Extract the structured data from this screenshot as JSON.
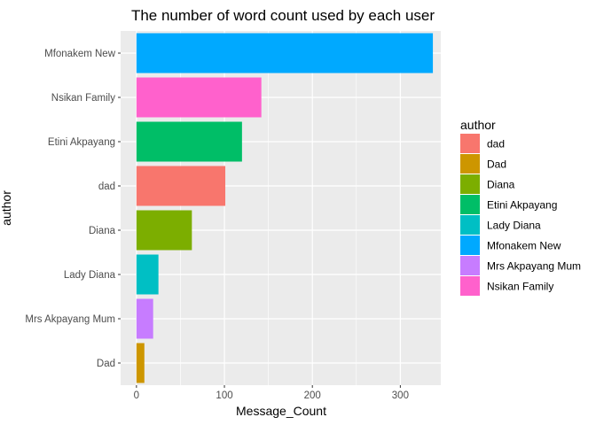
{
  "chart_data": {
    "type": "bar",
    "orientation": "horizontal",
    "title": "The number of word count used by each user",
    "xlabel": "Message_Count",
    "ylabel": "author",
    "xlim": [
      -18,
      346
    ],
    "xticks": [
      0,
      100,
      200,
      300
    ],
    "xtick_labels": [
      "0",
      "100",
      "200",
      "300"
    ],
    "grid": true,
    "categories": [
      "Mfonakem New",
      "Nsikan Family",
      "Etini Akpayang",
      "dad",
      "Diana",
      "Lady Diana",
      "Mrs Akpayang Mum",
      "Dad"
    ],
    "values": [
      337,
      142,
      120,
      101,
      63,
      25,
      19,
      9
    ],
    "bar_colors": [
      "#00A9FF",
      "#FF61CC",
      "#00BE67",
      "#F8766D",
      "#7CAE00",
      "#00BFC4",
      "#C77CFF",
      "#CD9600"
    ],
    "legend": {
      "title": "author",
      "placement": "right",
      "entries": [
        {
          "label": "dad",
          "color": "#F8766D"
        },
        {
          "label": "Dad",
          "color": "#CD9600"
        },
        {
          "label": "Diana",
          "color": "#7CAE00"
        },
        {
          "label": "Etini Akpayang",
          "color": "#00BE67"
        },
        {
          "label": "Lady Diana",
          "color": "#00BFC4"
        },
        {
          "label": "Mfonakem New",
          "color": "#00A9FF"
        },
        {
          "label": "Mrs Akpayang Mum",
          "color": "#C77CFF"
        },
        {
          "label": "Nsikan Family",
          "color": "#FF61CC"
        }
      ]
    },
    "panel_background": "#EBEBEB",
    "grid_color": "#FFFFFF"
  }
}
